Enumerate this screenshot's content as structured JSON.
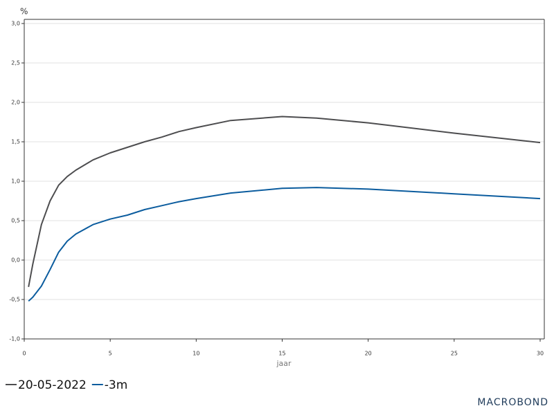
{
  "chart_data": {
    "type": "line",
    "y_unit": "%",
    "x_label": "jaar",
    "watermark": "MACROBOND",
    "x": [
      0.25,
      0.5,
      1,
      1.5,
      2,
      2.5,
      3,
      4,
      5,
      6,
      7,
      8,
      9,
      10,
      12,
      15,
      17,
      20,
      25,
      30
    ],
    "series": [
      {
        "name": "20-05-2022",
        "color": "#4d4d4f",
        "values": [
          -0.34,
          -0.05,
          0.45,
          0.75,
          0.95,
          1.06,
          1.14,
          1.27,
          1.36,
          1.43,
          1.5,
          1.56,
          1.63,
          1.68,
          1.77,
          1.82,
          1.8,
          1.74,
          1.61,
          1.49
        ]
      },
      {
        "name": "-3m",
        "color": "#0b5c9e",
        "values": [
          -0.52,
          -0.47,
          -0.33,
          -0.12,
          0.1,
          0.24,
          0.33,
          0.45,
          0.52,
          0.57,
          0.64,
          0.69,
          0.74,
          0.78,
          0.85,
          0.91,
          0.92,
          0.9,
          0.84,
          0.78
        ]
      }
    ],
    "xlim": [
      0,
      30
    ],
    "xticks": [
      0,
      5,
      10,
      15,
      20,
      25,
      30
    ],
    "ylim": [
      -1,
      3
    ],
    "yticks": [
      {
        "value": -1,
        "label": "-1,0"
      },
      {
        "value": -0.5,
        "label": "-0,5"
      },
      {
        "value": 0,
        "label": "0,0"
      },
      {
        "value": 0.5,
        "label": "0,5"
      },
      {
        "value": 1,
        "label": "1,0"
      },
      {
        "value": 1.5,
        "label": "1,5"
      },
      {
        "value": 2,
        "label": "2,0"
      },
      {
        "value": 2.5,
        "label": "2,5"
      },
      {
        "value": 3,
        "label": "3,0"
      }
    ],
    "grid": true
  }
}
